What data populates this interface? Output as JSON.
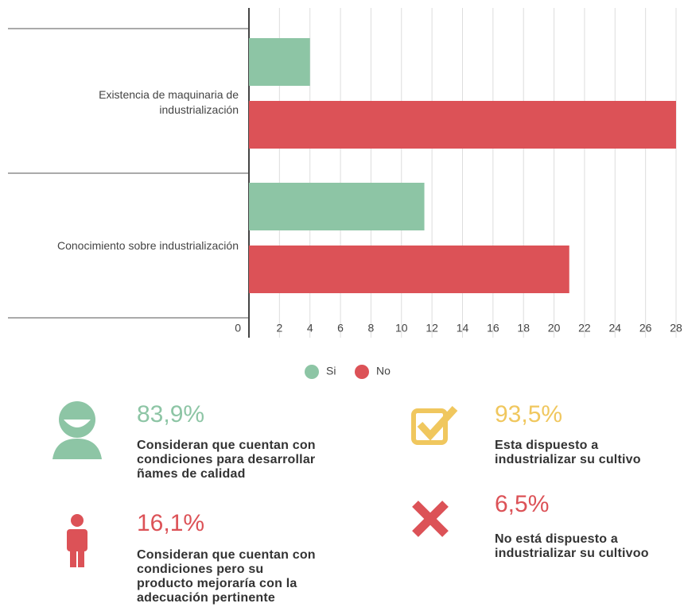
{
  "chart_data": {
    "type": "bar",
    "orientation": "horizontal",
    "categories": [
      "Existencia de maquinaria de industrialización",
      "Conocimiento sobre industrialización"
    ],
    "series": [
      {
        "name": "Si",
        "color": "#8dc5a5",
        "values": [
          4,
          11.5
        ]
      },
      {
        "name": "No",
        "color": "#dc5257",
        "values": [
          28,
          21
        ]
      }
    ],
    "xlim": [
      0,
      28
    ],
    "xticks": [
      0,
      2,
      4,
      6,
      8,
      10,
      12,
      14,
      16,
      18,
      20,
      22,
      24,
      26,
      28
    ],
    "grid": true
  },
  "stats": [
    {
      "value": "83,9%",
      "color": "#8dc5a5",
      "lines": [
        "Consideran que cuentan con",
        "condiciones para desarrollar",
        "ñames de calidad"
      ]
    },
    {
      "value": "93,5%",
      "color": "#f0c75e",
      "lines": [
        "Esta dispuesto a",
        "industrializar su cultivo"
      ]
    },
    {
      "value": "16,1%",
      "color": "#dc5257",
      "lines": [
        "Consideran que cuentan con",
        "condiciones pero su",
        "producto mejoraría con la",
        "adecuación pertinente"
      ]
    },
    {
      "value": "6,5%",
      "color": "#dc5257",
      "lines": [
        "No está dispuesto a",
        "industrializar su cultivoo"
      ]
    }
  ]
}
